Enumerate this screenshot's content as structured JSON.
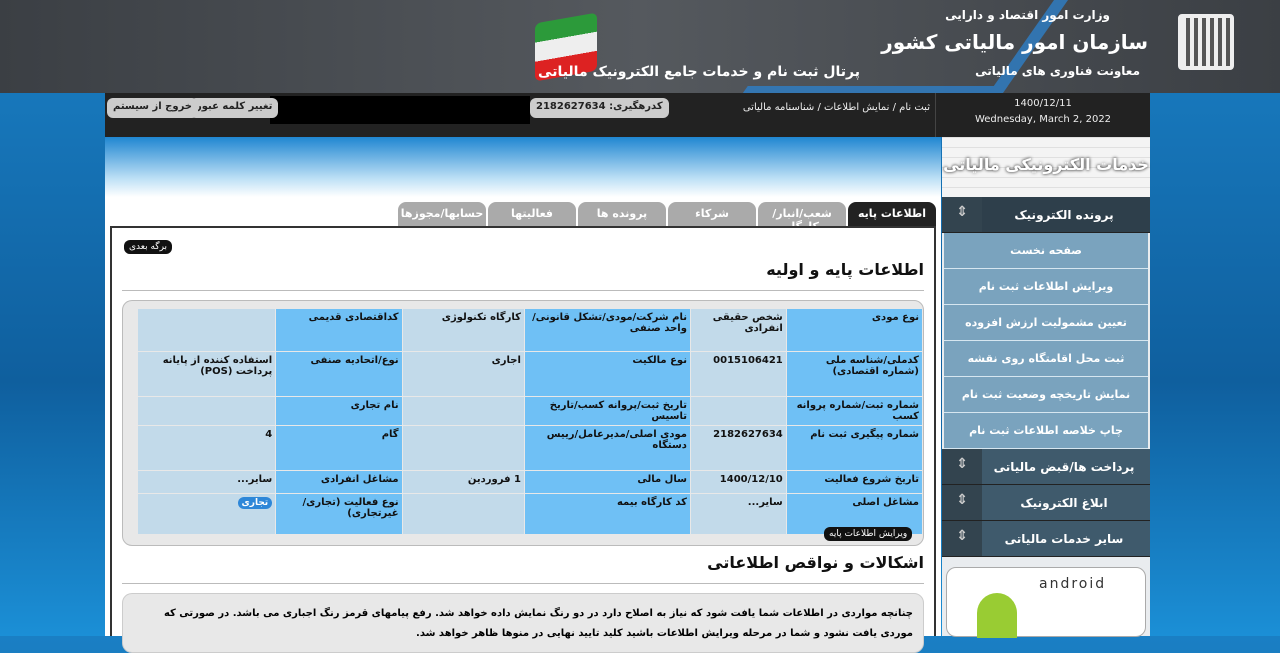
{
  "banner": {
    "ministry": "وزارت امور اقتصاد و دارایی",
    "org": "سازمان امور مالیاتی کشور",
    "deputy": "معاونت فناوری های مالیاتی",
    "portal": "پرتال ثبت نام و خدمات جامع الکترونیک مالیاتی"
  },
  "infobar": {
    "date_fa": "1400/12/11",
    "date_en": "Wednesday, March 2, 2022",
    "breadcrumb": "ثبت نام / نمایش اطلاعات / شناسنامه مالیاتی",
    "tracking": "کدرهگیری: 2182627634",
    "change_password": "تغییر کلمه عبور",
    "logout": "خروج از سیستم"
  },
  "tabs": [
    "اطلاعات پایه",
    "شعب/انبار/کارگاه",
    "شرکاء",
    "پرونده ها",
    "فعالیتها",
    "حسابها/مجوزها"
  ],
  "content": {
    "next_page": "برگه بعدی",
    "title": "اطلاعات پایه و اولیه",
    "edit": "ویرایش اطلاعات پایه",
    "issues_title": "اشکالات و نواقص اطلاعاتی",
    "issues_text": "چنانچه مواردی در اطلاعات شما یافت شود که نیاز به اصلاح دارد در دو رنگ نمایش داده خواهد شد. رفع پیامهای قرمز رنگ اجباری می باشد. در صورتی که موردی یافت نشود و شما در مرحله ویرایش اطلاعات باشید کلید تایید نهایی در منوها ظاهر خواهد شد."
  },
  "table": [
    [
      [
        "نوع مودی",
        "شخص حقیقی انفرادی"
      ],
      [
        "نام شرکت/مودی/تشکل قانونی/واحد صنفی",
        "کارگاه تکنولوژی"
      ],
      [
        "کداقتصادی قدیمی",
        ""
      ]
    ],
    [
      [
        "کدملی/شناسه ملی (شماره اقتصادی)",
        "0015106421"
      ],
      [
        "نوع مالکیت",
        "اجاری"
      ],
      [
        "نوع/اتحادیه صنفی",
        "استفاده کننده از پایانه پرداخت (POS)"
      ]
    ],
    [
      [
        "شماره ثبت/شماره پروانه کسب",
        ""
      ],
      [
        "تاریخ ثبت/پروانه کسب/تاریخ تاسیس",
        ""
      ],
      [
        "نام تجاری",
        ""
      ]
    ],
    [
      [
        "شماره پیگیری ثبت نام",
        "2182627634"
      ],
      [
        "مودی اصلی/مدیرعامل/رییس دستگاه",
        ""
      ],
      [
        "گام",
        "4"
      ]
    ],
    [
      [
        "تاریخ شروع فعالیت",
        "1400/12/10"
      ],
      [
        "سال مالی",
        "1 فروردین"
      ],
      [
        "مشاغل انفرادی",
        "سایر..."
      ]
    ],
    [
      [
        "مشاغل اصلی",
        "سایر..."
      ],
      [
        "کد کارگاه بیمه",
        ""
      ],
      [
        "نوع فعالیت (تجاری/غیرتجاری)",
        "تجاری"
      ]
    ]
  ],
  "sidebar": {
    "header": "خدمات الکترونیکی مالیاتی",
    "sections": [
      {
        "label": "پرونده الکترونیک",
        "items": [
          "صفحه نخست",
          "ویرایش اطلاعات ثبت نام",
          "تعیین مشمولیت ارزش افزوده",
          "ثبت محل اقامتگاه روی نقشه",
          "نمایش تاریخچه وضعیت ثبت نام",
          "چاپ خلاصه اطلاعات ثبت نام"
        ]
      },
      {
        "label": "پرداخت ها/قبض مالیاتی"
      },
      {
        "label": "ابلاغ الکترونیک"
      },
      {
        "label": "سایر خدمات مالیاتی"
      }
    ],
    "android": "android"
  }
}
